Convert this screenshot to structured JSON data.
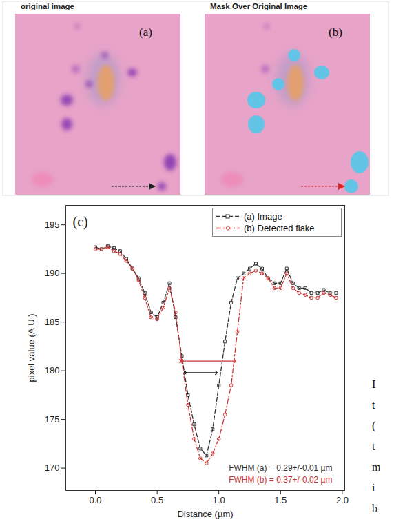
{
  "images": [
    {
      "title": "original image",
      "label": "(a)"
    },
    {
      "title": "Mask Over Original Image",
      "label": "(b)"
    }
  ],
  "chart_data": {
    "type": "line",
    "panel_label": "(c)",
    "x_label": "Distance (µm)",
    "y_label": "pixel value (A.U.)",
    "x": [
      0.0,
      0.05,
      0.1,
      0.15,
      0.2,
      0.25,
      0.3,
      0.35,
      0.4,
      0.45,
      0.5,
      0.55,
      0.6,
      0.65,
      0.7,
      0.75,
      0.8,
      0.85,
      0.9,
      0.95,
      1.0,
      1.05,
      1.1,
      1.15,
      1.2,
      1.25,
      1.3,
      1.35,
      1.4,
      1.45,
      1.5,
      1.55,
      1.6,
      1.65,
      1.7,
      1.75,
      1.8,
      1.85,
      1.9,
      1.95
    ],
    "series": [
      {
        "name": "(a) Image",
        "color": "#333333",
        "marker": "square",
        "line_style": "dashed",
        "values": [
          192.7,
          192.5,
          192.8,
          192.6,
          192.3,
          191.5,
          190.5,
          189.5,
          188,
          186,
          185.5,
          187,
          189,
          185.5,
          181.5,
          177.5,
          174.5,
          172,
          171.3,
          174,
          178.5,
          183,
          187,
          189.5,
          190,
          190.5,
          191,
          190.5,
          189.5,
          189,
          189,
          190.5,
          189,
          188.5,
          188.5,
          188,
          188,
          188.3,
          188,
          188
        ]
      },
      {
        "name": "(b) Detected flake",
        "color": "#cc3333",
        "marker": "circle",
        "line_style": "dashdot",
        "values": [
          192.5,
          192.5,
          192.7,
          192.3,
          192,
          191.3,
          190.5,
          189.3,
          187.5,
          185.5,
          185.3,
          186.5,
          188.5,
          186,
          181,
          176.5,
          173,
          171,
          170.5,
          171.5,
          173,
          175.5,
          178.5,
          184,
          189.5,
          190,
          190.3,
          190,
          189.5,
          188.5,
          188.5,
          190,
          188.5,
          188,
          187.8,
          187.5,
          187.5,
          188,
          187.8,
          187.5
        ]
      }
    ],
    "xlim": [
      -0.24,
      2.02
    ],
    "xticks": [
      {
        "value": 0,
        "label": "0.0"
      },
      0.5,
      {
        "value": 1,
        "label": "1.0"
      },
      1.5,
      {
        "value": 2,
        "label": "2.0"
      }
    ],
    "ylim": [
      167.7,
      197
    ],
    "yticks": [
      170,
      175,
      180,
      185,
      190,
      195
    ],
    "legend": "upper right",
    "fwhm_arrows": [
      {
        "x": [
          0.69,
          1.13
        ],
        "y": 181,
        "color": "#cc3333"
      },
      {
        "x": [
          0.73,
          0.98
        ],
        "y": 179.8,
        "color": "#111111"
      }
    ],
    "annotations": [
      {
        "text": "FWHM (a) = 0.29+/-0.01 µm",
        "color": "#333333"
      },
      {
        "text": "FWHM (b) = 0.37+/-0.02 µm",
        "color": "#cc3333"
      }
    ],
    "side_text_fragments": [
      "I",
      "t",
      "(",
      "t",
      "m",
      "i",
      "b"
    ]
  }
}
